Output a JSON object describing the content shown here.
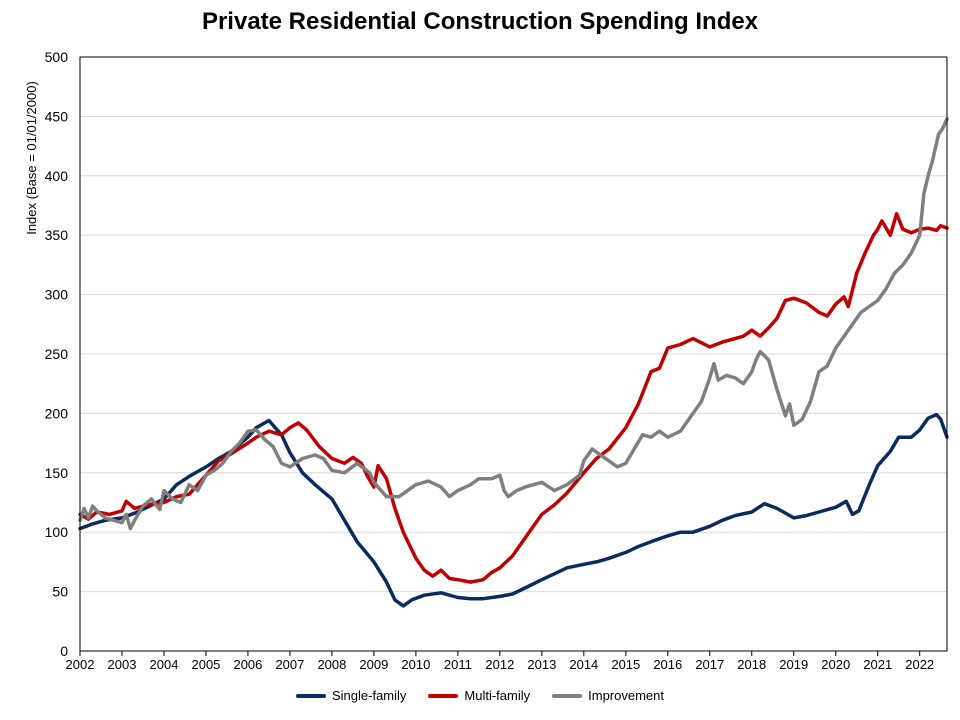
{
  "chart_data": {
    "type": "line",
    "title": "Private Residential Construction Spending Index",
    "ylabel": "Index  (Base = 01/01/2000)",
    "xlabel": "",
    "ylim": [
      0,
      500
    ],
    "xlim": [
      2002.0,
      2022.65
    ],
    "y_ticks": [
      "0",
      "50",
      "100",
      "150",
      "200",
      "250",
      "300",
      "350",
      "400",
      "450",
      "500"
    ],
    "x_ticks": [
      "2002",
      "2003",
      "2004",
      "2005",
      "2006",
      "2007",
      "2008",
      "2009",
      "2010",
      "2011",
      "2012",
      "2013",
      "2014",
      "2015",
      "2016",
      "2017",
      "2018",
      "2019",
      "2020",
      "2021",
      "2022"
    ],
    "grid": "horizontal",
    "legend_position": "bottom",
    "series": [
      {
        "name": "Single-family",
        "color": "#0b2a5e",
        "points": [
          [
            2002.0,
            103
          ],
          [
            2002.3,
            107
          ],
          [
            2002.6,
            110
          ],
          [
            2003.0,
            112
          ],
          [
            2003.3,
            116
          ],
          [
            2003.6,
            121
          ],
          [
            2004.0,
            128
          ],
          [
            2004.3,
            140
          ],
          [
            2004.6,
            147
          ],
          [
            2005.0,
            155
          ],
          [
            2005.3,
            162
          ],
          [
            2005.6,
            168
          ],
          [
            2006.0,
            180
          ],
          [
            2006.2,
            188
          ],
          [
            2006.5,
            194
          ],
          [
            2006.8,
            182
          ],
          [
            2007.0,
            167
          ],
          [
            2007.3,
            150
          ],
          [
            2007.6,
            140
          ],
          [
            2008.0,
            128
          ],
          [
            2008.3,
            110
          ],
          [
            2008.6,
            92
          ],
          [
            2009.0,
            75
          ],
          [
            2009.3,
            58
          ],
          [
            2009.5,
            43
          ],
          [
            2009.7,
            38
          ],
          [
            2009.9,
            43
          ],
          [
            2010.2,
            47
          ],
          [
            2010.6,
            49
          ],
          [
            2011.0,
            45
          ],
          [
            2011.3,
            44
          ],
          [
            2011.6,
            44
          ],
          [
            2012.0,
            46
          ],
          [
            2012.3,
            48
          ],
          [
            2012.6,
            53
          ],
          [
            2013.0,
            60
          ],
          [
            2013.3,
            65
          ],
          [
            2013.6,
            70
          ],
          [
            2014.0,
            73
          ],
          [
            2014.3,
            75
          ],
          [
            2014.6,
            78
          ],
          [
            2015.0,
            83
          ],
          [
            2015.3,
            88
          ],
          [
            2015.6,
            92
          ],
          [
            2016.0,
            97
          ],
          [
            2016.3,
            100
          ],
          [
            2016.6,
            100
          ],
          [
            2017.0,
            105
          ],
          [
            2017.3,
            110
          ],
          [
            2017.6,
            114
          ],
          [
            2018.0,
            117
          ],
          [
            2018.3,
            124
          ],
          [
            2018.6,
            120
          ],
          [
            2019.0,
            112
          ],
          [
            2019.3,
            114
          ],
          [
            2019.6,
            117
          ],
          [
            2020.0,
            121
          ],
          [
            2020.25,
            126
          ],
          [
            2020.4,
            115
          ],
          [
            2020.55,
            118
          ],
          [
            2020.8,
            140
          ],
          [
            2021.0,
            156
          ],
          [
            2021.3,
            168
          ],
          [
            2021.5,
            180
          ],
          [
            2021.8,
            180
          ],
          [
            2022.0,
            186
          ],
          [
            2022.2,
            196
          ],
          [
            2022.4,
            199
          ],
          [
            2022.5,
            195
          ],
          [
            2022.65,
            180
          ]
        ]
      },
      {
        "name": "Multi-family",
        "color": "#c00000",
        "points": [
          [
            2002.0,
            115
          ],
          [
            2002.2,
            111
          ],
          [
            2002.4,
            117
          ],
          [
            2002.7,
            115
          ],
          [
            2003.0,
            118
          ],
          [
            2003.1,
            126
          ],
          [
            2003.3,
            120
          ],
          [
            2003.6,
            123
          ],
          [
            2004.0,
            125
          ],
          [
            2004.3,
            130
          ],
          [
            2004.6,
            132
          ],
          [
            2005.0,
            148
          ],
          [
            2005.3,
            160
          ],
          [
            2005.6,
            166
          ],
          [
            2006.0,
            175
          ],
          [
            2006.2,
            180
          ],
          [
            2006.5,
            185
          ],
          [
            2006.8,
            182
          ],
          [
            2007.0,
            188
          ],
          [
            2007.2,
            192
          ],
          [
            2007.4,
            186
          ],
          [
            2007.7,
            172
          ],
          [
            2008.0,
            162
          ],
          [
            2008.3,
            158
          ],
          [
            2008.5,
            163
          ],
          [
            2008.7,
            158
          ],
          [
            2008.85,
            147
          ],
          [
            2009.0,
            138
          ],
          [
            2009.1,
            156
          ],
          [
            2009.3,
            145
          ],
          [
            2009.5,
            120
          ],
          [
            2009.7,
            100
          ],
          [
            2010.0,
            78
          ],
          [
            2010.2,
            68
          ],
          [
            2010.4,
            63
          ],
          [
            2010.6,
            68
          ],
          [
            2010.8,
            61
          ],
          [
            2011.0,
            60
          ],
          [
            2011.3,
            58
          ],
          [
            2011.6,
            60
          ],
          [
            2011.8,
            66
          ],
          [
            2012.0,
            70
          ],
          [
            2012.3,
            80
          ],
          [
            2012.6,
            95
          ],
          [
            2013.0,
            115
          ],
          [
            2013.3,
            123
          ],
          [
            2013.6,
            133
          ],
          [
            2014.0,
            150
          ],
          [
            2014.3,
            162
          ],
          [
            2014.6,
            170
          ],
          [
            2015.0,
            188
          ],
          [
            2015.3,
            208
          ],
          [
            2015.6,
            235
          ],
          [
            2015.8,
            238
          ],
          [
            2016.0,
            255
          ],
          [
            2016.3,
            258
          ],
          [
            2016.6,
            263
          ],
          [
            2017.0,
            256
          ],
          [
            2017.3,
            260
          ],
          [
            2017.6,
            263
          ],
          [
            2017.8,
            265
          ],
          [
            2018.0,
            270
          ],
          [
            2018.2,
            265
          ],
          [
            2018.4,
            272
          ],
          [
            2018.6,
            280
          ],
          [
            2018.8,
            295
          ],
          [
            2019.0,
            297
          ],
          [
            2019.3,
            293
          ],
          [
            2019.6,
            285
          ],
          [
            2019.8,
            282
          ],
          [
            2020.0,
            292
          ],
          [
            2020.2,
            298
          ],
          [
            2020.3,
            290
          ],
          [
            2020.5,
            318
          ],
          [
            2020.7,
            335
          ],
          [
            2020.9,
            350
          ],
          [
            2021.0,
            355
          ],
          [
            2021.1,
            362
          ],
          [
            2021.3,
            350
          ],
          [
            2021.45,
            368
          ],
          [
            2021.6,
            355
          ],
          [
            2021.8,
            352
          ],
          [
            2022.0,
            355
          ],
          [
            2022.2,
            356
          ],
          [
            2022.4,
            354
          ],
          [
            2022.5,
            358
          ],
          [
            2022.65,
            356
          ]
        ]
      },
      {
        "name": "Improvement",
        "color": "#7f7f7f",
        "points": [
          [
            2002.0,
            110
          ],
          [
            2002.1,
            120
          ],
          [
            2002.2,
            112
          ],
          [
            2002.3,
            122
          ],
          [
            2002.4,
            118
          ],
          [
            2002.6,
            112
          ],
          [
            2002.8,
            110
          ],
          [
            2003.0,
            108
          ],
          [
            2003.1,
            115
          ],
          [
            2003.2,
            103
          ],
          [
            2003.3,
            110
          ],
          [
            2003.5,
            122
          ],
          [
            2003.7,
            128
          ],
          [
            2003.9,
            119
          ],
          [
            2004.0,
            135
          ],
          [
            2004.2,
            128
          ],
          [
            2004.4,
            125
          ],
          [
            2004.6,
            140
          ],
          [
            2004.8,
            135
          ],
          [
            2005.0,
            148
          ],
          [
            2005.2,
            152
          ],
          [
            2005.4,
            158
          ],
          [
            2005.6,
            168
          ],
          [
            2005.8,
            175
          ],
          [
            2006.0,
            185
          ],
          [
            2006.2,
            186
          ],
          [
            2006.4,
            178
          ],
          [
            2006.6,
            172
          ],
          [
            2006.8,
            158
          ],
          [
            2007.0,
            155
          ],
          [
            2007.3,
            162
          ],
          [
            2007.6,
            165
          ],
          [
            2007.8,
            162
          ],
          [
            2008.0,
            152
          ],
          [
            2008.3,
            150
          ],
          [
            2008.6,
            158
          ],
          [
            2008.9,
            150
          ],
          [
            2009.0,
            142
          ],
          [
            2009.3,
            130
          ],
          [
            2009.6,
            130
          ],
          [
            2010.0,
            140
          ],
          [
            2010.3,
            143
          ],
          [
            2010.6,
            138
          ],
          [
            2010.8,
            130
          ],
          [
            2011.0,
            135
          ],
          [
            2011.3,
            140
          ],
          [
            2011.5,
            145
          ],
          [
            2011.8,
            145
          ],
          [
            2012.0,
            148
          ],
          [
            2012.1,
            135
          ],
          [
            2012.2,
            130
          ],
          [
            2012.4,
            135
          ],
          [
            2012.6,
            138
          ],
          [
            2013.0,
            142
          ],
          [
            2013.3,
            135
          ],
          [
            2013.6,
            140
          ],
          [
            2013.9,
            148
          ],
          [
            2014.0,
            160
          ],
          [
            2014.2,
            170
          ],
          [
            2014.4,
            165
          ],
          [
            2014.6,
            160
          ],
          [
            2014.8,
            155
          ],
          [
            2015.0,
            158
          ],
          [
            2015.2,
            170
          ],
          [
            2015.4,
            182
          ],
          [
            2015.6,
            180
          ],
          [
            2015.8,
            185
          ],
          [
            2016.0,
            180
          ],
          [
            2016.3,
            185
          ],
          [
            2016.6,
            200
          ],
          [
            2016.8,
            210
          ],
          [
            2017.0,
            230
          ],
          [
            2017.1,
            242
          ],
          [
            2017.2,
            228
          ],
          [
            2017.4,
            232
          ],
          [
            2017.6,
            230
          ],
          [
            2017.8,
            225
          ],
          [
            2018.0,
            235
          ],
          [
            2018.1,
            245
          ],
          [
            2018.2,
            252
          ],
          [
            2018.4,
            245
          ],
          [
            2018.6,
            220
          ],
          [
            2018.8,
            198
          ],
          [
            2018.9,
            208
          ],
          [
            2019.0,
            190
          ],
          [
            2019.2,
            195
          ],
          [
            2019.4,
            210
          ],
          [
            2019.6,
            235
          ],
          [
            2019.8,
            240
          ],
          [
            2020.0,
            255
          ],
          [
            2020.2,
            265
          ],
          [
            2020.4,
            275
          ],
          [
            2020.6,
            285
          ],
          [
            2020.8,
            290
          ],
          [
            2021.0,
            295
          ],
          [
            2021.2,
            305
          ],
          [
            2021.4,
            318
          ],
          [
            2021.6,
            325
          ],
          [
            2021.8,
            335
          ],
          [
            2022.0,
            350
          ],
          [
            2022.1,
            385
          ],
          [
            2022.2,
            400
          ],
          [
            2022.3,
            412
          ],
          [
            2022.45,
            435
          ],
          [
            2022.55,
            440
          ],
          [
            2022.65,
            448
          ]
        ]
      }
    ]
  }
}
